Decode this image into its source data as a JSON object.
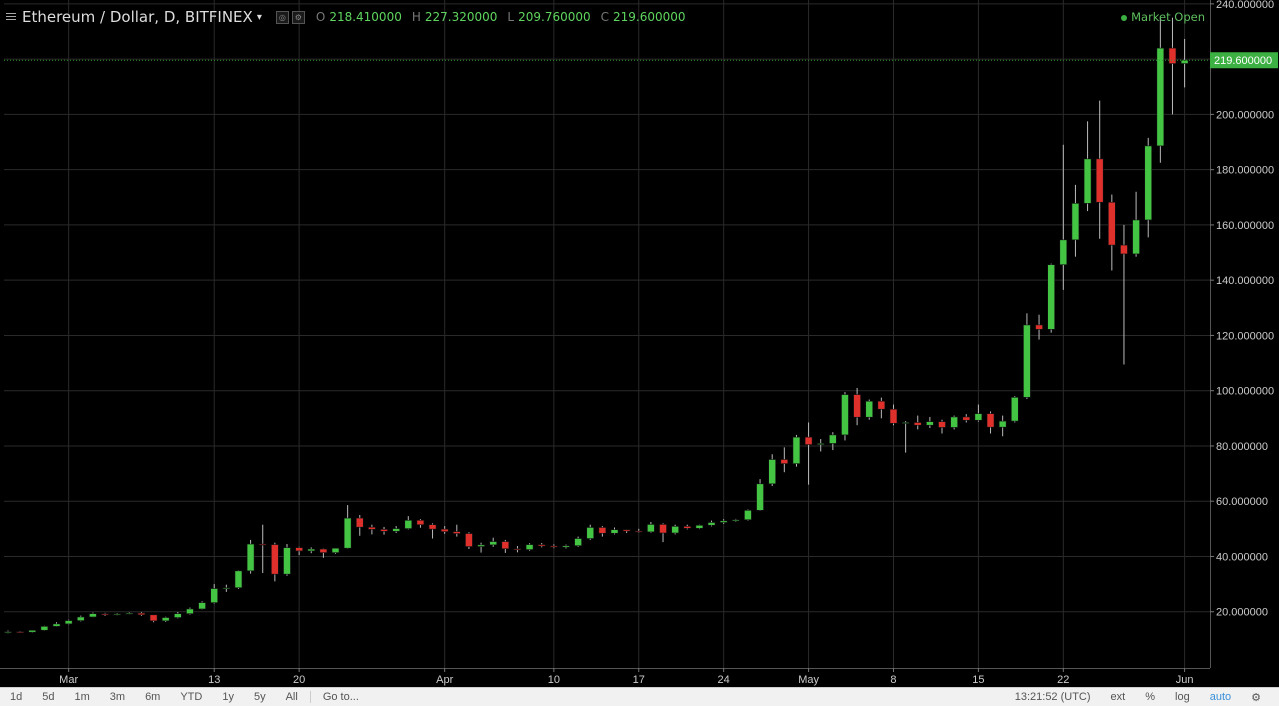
{
  "header": {
    "symbol": "Ethereum / Dollar, D, BITFINEX",
    "caret": "▾",
    "ohlc": [
      {
        "key": "O",
        "value": "218.410000"
      },
      {
        "key": "H",
        "value": "227.320000"
      },
      {
        "key": "L",
        "value": "209.760000"
      },
      {
        "key": "C",
        "value": "219.600000"
      }
    ],
    "market_status": "Market Open"
  },
  "price_axis": {
    "ticks": [
      "240.000000",
      "220.000000",
      "200.000000",
      "180.000000",
      "160.000000",
      "140.000000",
      "120.000000",
      "100.000000",
      "80.000000",
      "60.000000",
      "40.000000",
      "20.000000"
    ],
    "last_price_label": "219.600000"
  },
  "time_axis": {
    "labels": [
      "Mar",
      "13",
      "20",
      "Apr",
      "10",
      "17",
      "24",
      "May",
      "8",
      "15",
      "22",
      "Jun"
    ]
  },
  "toolbar": {
    "ranges": [
      "1d",
      "5d",
      "1m",
      "3m",
      "6m",
      "YTD",
      "1y",
      "5y",
      "All"
    ],
    "goto": "Go to...",
    "clock": "13:21:52 (UTC)",
    "ext": "ext",
    "percent": "%",
    "log": "log",
    "auto": "auto"
  },
  "colors": {
    "up": "#43c443",
    "down": "#e0302c",
    "grid": "#2a2a2a",
    "last_line": "#2e9e2e",
    "last_label_bg": "#3cb043"
  },
  "chart_data": {
    "type": "candlestick",
    "title": "Ethereum / Dollar, D, BITFINEX",
    "xlabel": "",
    "ylabel": "",
    "ylim": [
      0,
      240
    ],
    "grid": true,
    "candles": [
      {
        "date": "2017-02-24",
        "o": 12.5,
        "h": 13.2,
        "l": 12.2,
        "c": 12.8
      },
      {
        "date": "2017-02-25",
        "o": 12.8,
        "h": 13.0,
        "l": 12.3,
        "c": 12.6
      },
      {
        "date": "2017-02-26",
        "o": 12.6,
        "h": 13.4,
        "l": 12.4,
        "c": 13.3
      },
      {
        "date": "2017-02-27",
        "o": 13.3,
        "h": 14.9,
        "l": 13.1,
        "c": 14.7
      },
      {
        "date": "2017-02-28",
        "o": 14.7,
        "h": 16.2,
        "l": 14.6,
        "c": 15.6
      },
      {
        "date": "2017-03-01",
        "o": 15.6,
        "h": 17.1,
        "l": 15.4,
        "c": 16.8
      },
      {
        "date": "2017-03-02",
        "o": 16.8,
        "h": 18.6,
        "l": 16.5,
        "c": 18.1
      },
      {
        "date": "2017-03-03",
        "o": 18.1,
        "h": 19.7,
        "l": 18.0,
        "c": 19.3
      },
      {
        "date": "2017-03-04",
        "o": 19.3,
        "h": 19.6,
        "l": 18.5,
        "c": 18.9
      },
      {
        "date": "2017-03-05",
        "o": 18.9,
        "h": 19.5,
        "l": 18.7,
        "c": 19.2
      },
      {
        "date": "2017-03-06",
        "o": 19.2,
        "h": 19.8,
        "l": 19.0,
        "c": 19.5
      },
      {
        "date": "2017-03-07",
        "o": 19.5,
        "h": 19.9,
        "l": 18.5,
        "c": 18.9
      },
      {
        "date": "2017-03-08",
        "o": 18.9,
        "h": 19.0,
        "l": 16.2,
        "c": 16.7
      },
      {
        "date": "2017-03-09",
        "o": 16.7,
        "h": 18.2,
        "l": 16.3,
        "c": 17.9
      },
      {
        "date": "2017-03-10",
        "o": 17.9,
        "h": 19.9,
        "l": 17.6,
        "c": 19.3
      },
      {
        "date": "2017-03-11",
        "o": 19.3,
        "h": 21.5,
        "l": 19.0,
        "c": 21.0
      },
      {
        "date": "2017-03-12",
        "o": 21.0,
        "h": 23.8,
        "l": 20.8,
        "c": 23.3
      },
      {
        "date": "2017-03-13",
        "o": 23.3,
        "h": 30.0,
        "l": 23.0,
        "c": 28.4
      },
      {
        "date": "2017-03-14",
        "o": 28.4,
        "h": 29.8,
        "l": 27.2,
        "c": 28.7
      },
      {
        "date": "2017-03-15",
        "o": 28.7,
        "h": 35.0,
        "l": 28.3,
        "c": 34.8
      },
      {
        "date": "2017-03-16",
        "o": 34.8,
        "h": 46.0,
        "l": 33.8,
        "c": 44.5
      },
      {
        "date": "2017-03-17",
        "o": 44.5,
        "h": 51.5,
        "l": 34.0,
        "c": 44.3
      },
      {
        "date": "2017-03-18",
        "o": 44.3,
        "h": 45.0,
        "l": 31.0,
        "c": 33.6
      },
      {
        "date": "2017-03-19",
        "o": 33.6,
        "h": 44.5,
        "l": 33.0,
        "c": 43.2
      },
      {
        "date": "2017-03-20",
        "o": 43.2,
        "h": 43.5,
        "l": 40.5,
        "c": 42.0
      },
      {
        "date": "2017-03-21",
        "o": 42.0,
        "h": 43.3,
        "l": 41.2,
        "c": 42.7
      },
      {
        "date": "2017-03-22",
        "o": 42.7,
        "h": 42.9,
        "l": 39.5,
        "c": 41.4
      },
      {
        "date": "2017-03-23",
        "o": 41.4,
        "h": 43.0,
        "l": 41.0,
        "c": 43.0
      },
      {
        "date": "2017-03-24",
        "o": 43.0,
        "h": 58.6,
        "l": 42.8,
        "c": 53.9
      },
      {
        "date": "2017-03-25",
        "o": 53.9,
        "h": 55.0,
        "l": 47.5,
        "c": 50.6
      },
      {
        "date": "2017-03-26",
        "o": 50.6,
        "h": 51.5,
        "l": 48.0,
        "c": 49.8
      },
      {
        "date": "2017-03-27",
        "o": 49.8,
        "h": 50.7,
        "l": 47.9,
        "c": 49.1
      },
      {
        "date": "2017-03-28",
        "o": 49.1,
        "h": 51.0,
        "l": 48.5,
        "c": 50.1
      },
      {
        "date": "2017-03-29",
        "o": 50.1,
        "h": 54.6,
        "l": 49.8,
        "c": 53.1
      },
      {
        "date": "2017-03-30",
        "o": 53.1,
        "h": 53.5,
        "l": 50.4,
        "c": 51.5
      },
      {
        "date": "2017-03-31",
        "o": 51.5,
        "h": 52.0,
        "l": 46.5,
        "c": 49.9
      },
      {
        "date": "2017-04-01",
        "o": 49.9,
        "h": 51.0,
        "l": 48.2,
        "c": 49.0
      },
      {
        "date": "2017-04-02",
        "o": 49.0,
        "h": 51.5,
        "l": 47.2,
        "c": 48.3
      },
      {
        "date": "2017-04-03",
        "o": 48.3,
        "h": 48.8,
        "l": 42.7,
        "c": 43.6
      },
      {
        "date": "2017-04-04",
        "o": 43.6,
        "h": 45.0,
        "l": 41.4,
        "c": 44.2
      },
      {
        "date": "2017-04-05",
        "o": 44.2,
        "h": 46.8,
        "l": 43.5,
        "c": 45.4
      },
      {
        "date": "2017-04-06",
        "o": 45.4,
        "h": 46.0,
        "l": 41.3,
        "c": 42.8
      },
      {
        "date": "2017-04-07",
        "o": 42.8,
        "h": 43.8,
        "l": 41.5,
        "c": 42.5
      },
      {
        "date": "2017-04-08",
        "o": 42.5,
        "h": 44.8,
        "l": 42.1,
        "c": 44.3
      },
      {
        "date": "2017-04-09",
        "o": 44.3,
        "h": 44.9,
        "l": 43.3,
        "c": 43.8
      },
      {
        "date": "2017-04-10",
        "o": 43.8,
        "h": 44.4,
        "l": 43.0,
        "c": 43.4
      },
      {
        "date": "2017-04-11",
        "o": 43.4,
        "h": 44.3,
        "l": 42.9,
        "c": 43.9
      },
      {
        "date": "2017-04-12",
        "o": 43.9,
        "h": 47.2,
        "l": 43.5,
        "c": 46.5
      },
      {
        "date": "2017-04-13",
        "o": 46.5,
        "h": 51.5,
        "l": 46.0,
        "c": 50.5
      },
      {
        "date": "2017-04-14",
        "o": 50.5,
        "h": 51.0,
        "l": 47.2,
        "c": 48.4
      },
      {
        "date": "2017-04-15",
        "o": 48.4,
        "h": 50.5,
        "l": 48.0,
        "c": 49.7
      },
      {
        "date": "2017-04-16",
        "o": 49.7,
        "h": 49.8,
        "l": 48.5,
        "c": 49.2
      },
      {
        "date": "2017-04-17",
        "o": 49.2,
        "h": 50.0,
        "l": 48.6,
        "c": 48.9
      },
      {
        "date": "2017-04-18",
        "o": 48.9,
        "h": 52.5,
        "l": 48.6,
        "c": 51.6
      },
      {
        "date": "2017-04-19",
        "o": 51.6,
        "h": 52.0,
        "l": 45.2,
        "c": 48.5
      },
      {
        "date": "2017-04-20",
        "o": 48.5,
        "h": 51.5,
        "l": 48.0,
        "c": 50.9
      },
      {
        "date": "2017-04-21",
        "o": 50.9,
        "h": 51.5,
        "l": 49.8,
        "c": 50.2
      },
      {
        "date": "2017-04-22",
        "o": 50.2,
        "h": 51.5,
        "l": 49.9,
        "c": 51.3
      },
      {
        "date": "2017-04-23",
        "o": 51.3,
        "h": 53.0,
        "l": 50.9,
        "c": 52.3
      },
      {
        "date": "2017-04-24",
        "o": 52.3,
        "h": 53.5,
        "l": 51.8,
        "c": 52.9
      },
      {
        "date": "2017-04-25",
        "o": 52.9,
        "h": 53.6,
        "l": 52.6,
        "c": 53.3
      },
      {
        "date": "2017-04-26",
        "o": 53.3,
        "h": 57.0,
        "l": 53.0,
        "c": 56.7
      },
      {
        "date": "2017-04-27",
        "o": 56.7,
        "h": 68.0,
        "l": 56.5,
        "c": 66.3
      },
      {
        "date": "2017-04-28",
        "o": 66.3,
        "h": 77.0,
        "l": 65.5,
        "c": 75.1
      },
      {
        "date": "2017-04-29",
        "o": 75.1,
        "h": 79.5,
        "l": 70.5,
        "c": 73.6
      },
      {
        "date": "2017-04-30",
        "o": 73.6,
        "h": 84.0,
        "l": 72.5,
        "c": 83.2
      },
      {
        "date": "2017-05-01",
        "o": 83.2,
        "h": 88.5,
        "l": 66.0,
        "c": 80.5
      },
      {
        "date": "2017-05-02",
        "o": 80.5,
        "h": 82.5,
        "l": 78.0,
        "c": 80.9
      },
      {
        "date": "2017-05-03",
        "o": 80.9,
        "h": 85.0,
        "l": 78.5,
        "c": 84.0
      },
      {
        "date": "2017-05-04",
        "o": 84.0,
        "h": 99.5,
        "l": 82.0,
        "c": 98.6
      },
      {
        "date": "2017-05-05",
        "o": 98.6,
        "h": 101.0,
        "l": 87.5,
        "c": 90.4
      },
      {
        "date": "2017-05-06",
        "o": 90.4,
        "h": 96.8,
        "l": 89.5,
        "c": 96.2
      },
      {
        "date": "2017-05-07",
        "o": 96.2,
        "h": 97.5,
        "l": 90.0,
        "c": 93.3
      },
      {
        "date": "2017-05-08",
        "o": 93.3,
        "h": 95.0,
        "l": 87.5,
        "c": 88.2
      },
      {
        "date": "2017-05-09",
        "o": 88.2,
        "h": 89.0,
        "l": 77.6,
        "c": 88.5
      },
      {
        "date": "2017-05-10",
        "o": 88.5,
        "h": 91.0,
        "l": 86.0,
        "c": 87.5
      },
      {
        "date": "2017-05-11",
        "o": 87.5,
        "h": 90.5,
        "l": 86.5,
        "c": 88.8
      },
      {
        "date": "2017-05-12",
        "o": 88.8,
        "h": 89.5,
        "l": 84.5,
        "c": 86.7
      },
      {
        "date": "2017-05-13",
        "o": 86.7,
        "h": 91.0,
        "l": 86.0,
        "c": 90.5
      },
      {
        "date": "2017-05-14",
        "o": 90.5,
        "h": 91.5,
        "l": 88.5,
        "c": 89.3
      },
      {
        "date": "2017-05-15",
        "o": 89.3,
        "h": 95.0,
        "l": 88.8,
        "c": 91.7
      },
      {
        "date": "2017-05-16",
        "o": 91.7,
        "h": 92.5,
        "l": 84.5,
        "c": 86.8
      },
      {
        "date": "2017-05-17",
        "o": 86.8,
        "h": 91.0,
        "l": 83.5,
        "c": 89.0
      },
      {
        "date": "2017-05-18",
        "o": 89.0,
        "h": 98.0,
        "l": 88.5,
        "c": 97.6
      },
      {
        "date": "2017-05-19",
        "o": 97.6,
        "h": 128.0,
        "l": 97.0,
        "c": 123.8
      },
      {
        "date": "2017-05-20",
        "o": 123.8,
        "h": 127.5,
        "l": 118.5,
        "c": 122.2
      },
      {
        "date": "2017-05-21",
        "o": 122.2,
        "h": 146.0,
        "l": 121.0,
        "c": 145.6
      },
      {
        "date": "2017-05-22",
        "o": 145.6,
        "h": 189.0,
        "l": 136.5,
        "c": 154.6
      },
      {
        "date": "2017-05-23",
        "o": 154.6,
        "h": 174.5,
        "l": 148.5,
        "c": 167.8
      },
      {
        "date": "2017-05-24",
        "o": 167.8,
        "h": 197.5,
        "l": 165.0,
        "c": 183.9
      },
      {
        "date": "2017-05-25",
        "o": 183.9,
        "h": 205.0,
        "l": 155.0,
        "c": 168.2
      },
      {
        "date": "2017-05-26",
        "o": 168.2,
        "h": 171.0,
        "l": 143.5,
        "c": 152.7
      },
      {
        "date": "2017-05-27",
        "o": 152.7,
        "h": 160.0,
        "l": 109.5,
        "c": 149.5
      },
      {
        "date": "2017-05-28",
        "o": 149.5,
        "h": 172.0,
        "l": 148.5,
        "c": 161.8
      },
      {
        "date": "2017-05-29",
        "o": 161.8,
        "h": 191.5,
        "l": 155.5,
        "c": 188.6
      },
      {
        "date": "2017-05-30",
        "o": 188.6,
        "h": 235.0,
        "l": 182.5,
        "c": 224.0
      },
      {
        "date": "2017-05-31",
        "o": 224.0,
        "h": 235.0,
        "l": 200.0,
        "c": 218.4
      },
      {
        "date": "2017-06-01",
        "o": 218.41,
        "h": 227.32,
        "l": 209.76,
        "c": 219.6
      }
    ]
  }
}
